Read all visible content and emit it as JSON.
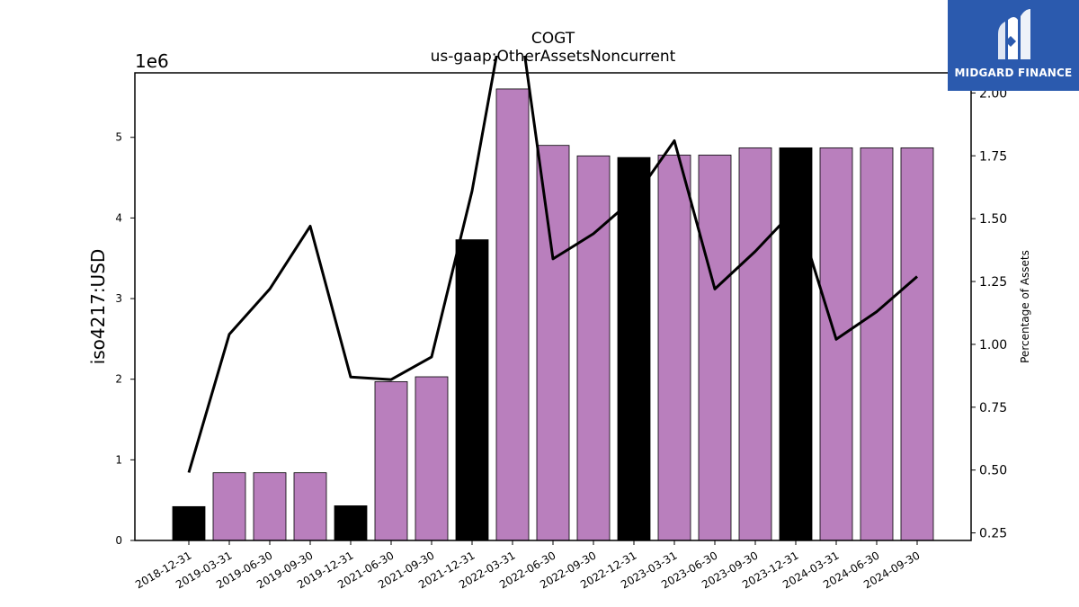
{
  "chart_data": {
    "type": "bar",
    "title": "COGT",
    "subtitle": "us-gaap:OtherAssetsNoncurrent",
    "ylabel": "iso4217:USD",
    "y_scale_label": "1e6",
    "y2label": "Percentage of Assets",
    "ylim": [
      0,
      5.8
    ],
    "y2lim": [
      0.22,
      2.08
    ],
    "yticks": [
      "0",
      "1",
      "2",
      "3",
      "4",
      "5"
    ],
    "y2ticks": [
      "0.25",
      "0.50",
      "0.75",
      "1.00",
      "1.25",
      "1.50",
      "1.75",
      "2.00"
    ],
    "categories": [
      "2018-12-31",
      "2019-03-31",
      "2019-06-30",
      "2019-09-30",
      "2019-12-31",
      "2021-06-30",
      "2021-09-30",
      "2021-12-31",
      "2022-03-31",
      "2022-06-30",
      "2022-09-30",
      "2022-12-31",
      "2023-03-31",
      "2023-06-30",
      "2023-09-30",
      "2023-12-31",
      "2024-03-31",
      "2024-06-30",
      "2024-09-30"
    ],
    "values": [
      0.42,
      0.84,
      0.84,
      0.84,
      0.43,
      1.97,
      2.03,
      3.73,
      5.6,
      4.9,
      4.77,
      4.75,
      4.78,
      4.78,
      4.87,
      4.87,
      4.87,
      4.87,
      4.87
    ],
    "bar_colors": [
      "#000000",
      "#b97fbd",
      "#b97fbd",
      "#b97fbd",
      "#000000",
      "#b97fbd",
      "#b97fbd",
      "#000000",
      "#b97fbd",
      "#b97fbd",
      "#b97fbd",
      "#000000",
      "#b97fbd",
      "#b97fbd",
      "#b97fbd",
      "#000000",
      "#b97fbd",
      "#b97fbd",
      "#b97fbd"
    ],
    "line_values": [
      0.49,
      1.04,
      1.22,
      1.47,
      0.87,
      0.86,
      0.95,
      1.61,
      2.5,
      1.34,
      1.44,
      1.58,
      1.81,
      1.22,
      1.37,
      1.54,
      1.02,
      1.13,
      1.27
    ],
    "line_color": "#000000",
    "grid": false,
    "legend": "none"
  },
  "logo": {
    "brand": "MIDGARD FINANCE",
    "icon": "midgard-m-logo-icon",
    "background": "#2b5aae"
  }
}
